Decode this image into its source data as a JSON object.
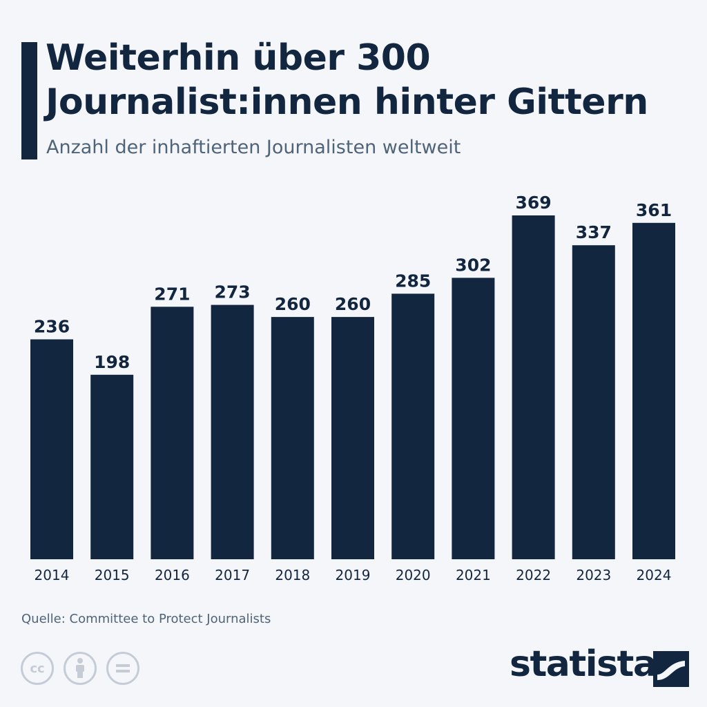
{
  "header": {
    "title_line1": "Weiterhin über 300",
    "title_line2": "Journalist:innen hinter Gittern",
    "subtitle": "Anzahl der inhaftierten Journalisten weltweit"
  },
  "footer": {
    "source": "Quelle: Committee to Protect Journalists",
    "brand": "statista",
    "license_icons": [
      "cc-icon",
      "attribution-icon",
      "no-derivatives-icon"
    ],
    "license_cc_text": "cc"
  },
  "colors": {
    "bar": "#12263f",
    "background": "#f4f6fa",
    "text_primary": "#12263f",
    "text_secondary": "#4f6379"
  },
  "chart_data": {
    "type": "bar",
    "title": "Weiterhin über 300 Journalist:innen hinter Gittern",
    "subtitle": "Anzahl der inhaftierten Journalisten weltweit",
    "categories": [
      "2014",
      "2015",
      "2016",
      "2017",
      "2018",
      "2019",
      "2020",
      "2021",
      "2022",
      "2023",
      "2024"
    ],
    "values": [
      236,
      198,
      271,
      273,
      260,
      260,
      285,
      302,
      369,
      337,
      361
    ],
    "data_labels": true,
    "ylim": [
      0,
      369
    ],
    "grid": false,
    "legend": "none"
  }
}
